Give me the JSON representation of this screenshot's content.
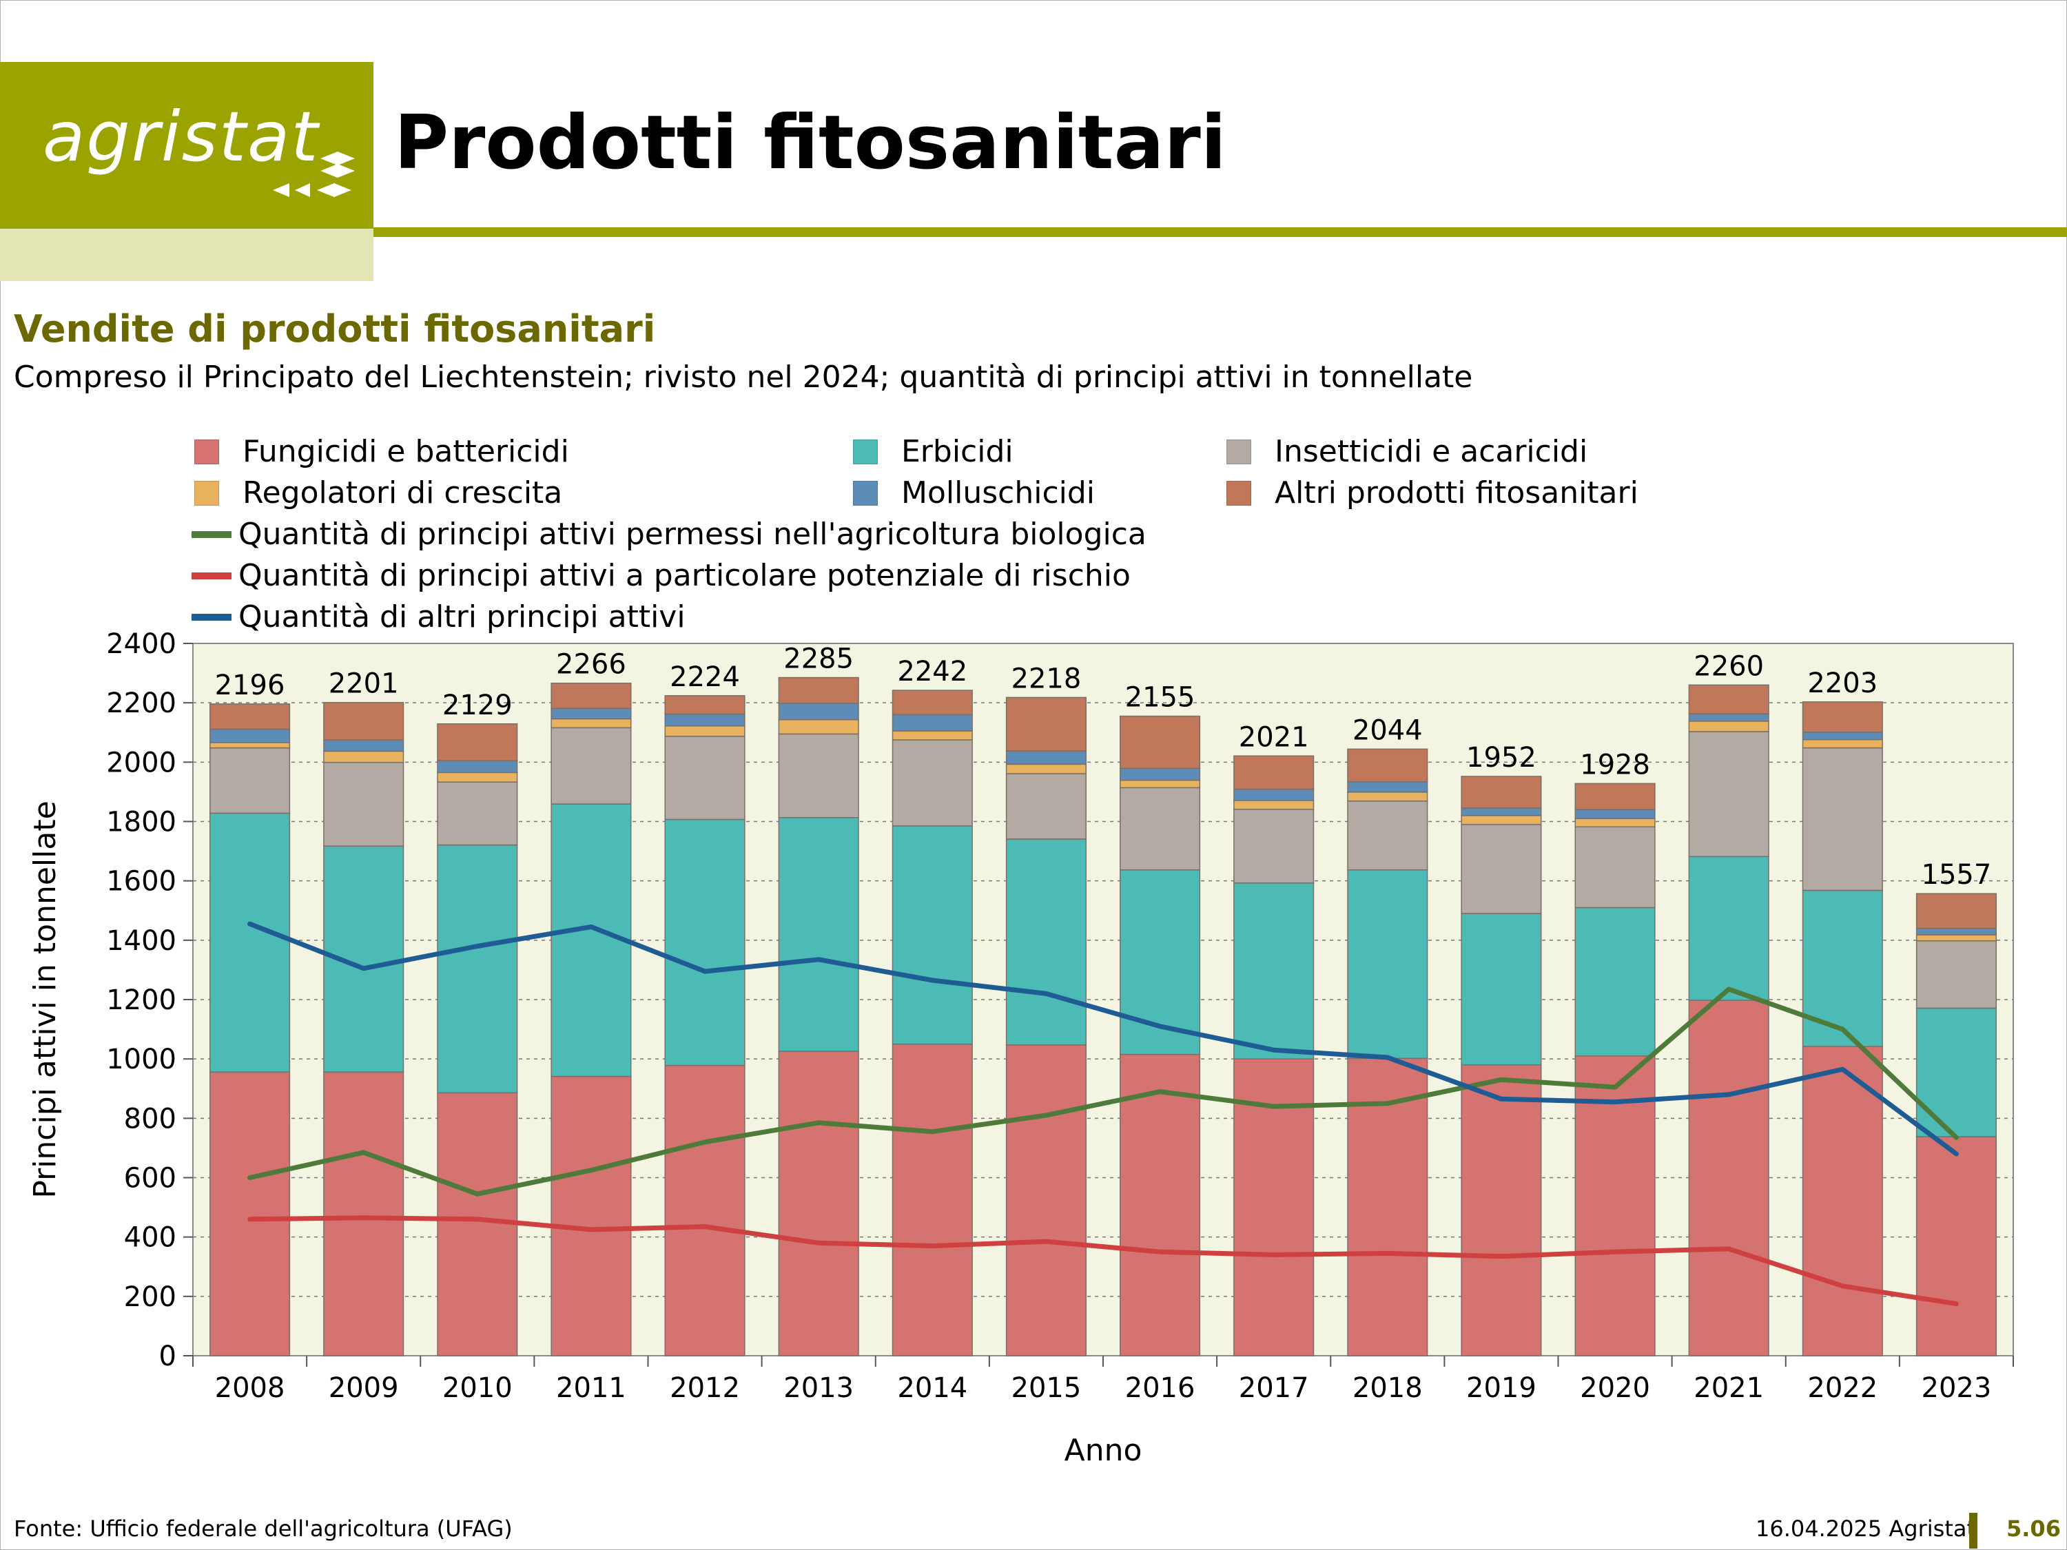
{
  "header": {
    "logo_text": "agristat",
    "page_title": "Prodotti fitosanitari"
  },
  "chart_data": {
    "type": "bar",
    "title": "Vendite di prodotti fitosanitari",
    "subtitle": "Compreso il Principato del Liechtenstein; rivisto nel 2024; quantità di principi attivi in tonnellate",
    "xlabel": "Anno",
    "ylabel": "Principi attivi in tonnellate",
    "ylim": [
      0,
      2400
    ],
    "yticks": [
      0,
      200,
      400,
      600,
      800,
      1000,
      1200,
      1400,
      1600,
      1800,
      2000,
      2200,
      2400
    ],
    "grid": true,
    "stacked": true,
    "categories": [
      "2008",
      "2009",
      "2010",
      "2011",
      "2012",
      "2013",
      "2014",
      "2015",
      "2016",
      "2017",
      "2018",
      "2019",
      "2020",
      "2021",
      "2022",
      "2023"
    ],
    "series": [
      {
        "name": "Fungicidi e battericidi",
        "color": "#d4736f",
        "values": [
          956,
          956,
          886,
          941,
          978,
          1026,
          1050,
          1047,
          1015,
          1000,
          1002,
          980,
          1010,
          1198,
          1042,
          738
        ]
      },
      {
        "name": "Erbicidi",
        "color": "#4dbbb5",
        "values": [
          872,
          761,
          835,
          918,
          829,
          787,
          735,
          694,
          622,
          593,
          635,
          510,
          500,
          484,
          526,
          433
        ]
      },
      {
        "name": "Insetticidi e acaricidi",
        "color": "#b2aaa3",
        "values": [
          220,
          282,
          212,
          257,
          280,
          282,
          290,
          220,
          277,
          248,
          232,
          300,
          272,
          421,
          480,
          227
        ]
      },
      {
        "name": "Regolatori di crescita",
        "color": "#e8b25f",
        "values": [
          18,
          38,
          32,
          30,
          35,
          48,
          30,
          32,
          25,
          30,
          30,
          30,
          28,
          35,
          28,
          20
        ]
      },
      {
        "name": "Molluschicidi",
        "color": "#5d8db6",
        "values": [
          45,
          38,
          40,
          35,
          40,
          55,
          55,
          45,
          40,
          38,
          35,
          25,
          30,
          25,
          25,
          22
        ]
      },
      {
        "name": "Altri prodotti fitosanitari",
        "color": "#c0775a",
        "values": [
          85,
          126,
          124,
          85,
          62,
          87,
          82,
          180,
          176,
          112,
          110,
          107,
          88,
          97,
          102,
          117
        ]
      }
    ],
    "totals": [
      2196,
      2201,
      2129,
      2266,
      2224,
      2285,
      2242,
      2218,
      2155,
      2021,
      2044,
      1952,
      1928,
      2260,
      2203,
      1557
    ],
    "lines": [
      {
        "name": "Quantità di principi attivi permessi nell'agricoltura biologica",
        "color": "#4e7a3a",
        "values": [
          600,
          685,
          545,
          625,
          720,
          785,
          755,
          810,
          890,
          840,
          850,
          930,
          905,
          1235,
          1100,
          735
        ]
      },
      {
        "name": "Quantità di principi attivi a particolare potenziale di rischio",
        "color": "#cf4040",
        "values": [
          460,
          465,
          460,
          425,
          435,
          380,
          370,
          385,
          350,
          340,
          345,
          335,
          350,
          360,
          235,
          175
        ]
      },
      {
        "name": "Quantità di altri principi attivi",
        "color": "#1f5c94",
        "values": [
          1455,
          1305,
          1380,
          1445,
          1295,
          1335,
          1265,
          1220,
          1110,
          1030,
          1005,
          865,
          855,
          880,
          965,
          680
        ]
      }
    ],
    "plot_background": "#f4f4e2"
  },
  "footer": {
    "source": "Fonte: Ufficio federale dell'agricoltura (UFAG)",
    "date": "16.04.2025 Agristat",
    "page": "5.06"
  }
}
